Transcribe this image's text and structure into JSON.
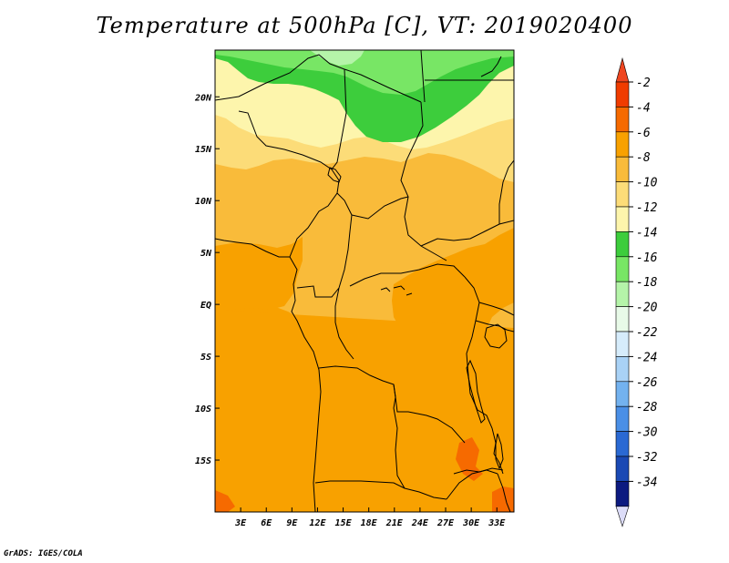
{
  "title": "Temperature at 500hPa [C], VT: 2019020400",
  "credit": "GrADS: IGES/COLA",
  "map": {
    "variable": "Temperature",
    "level": "500hPa",
    "units": "C",
    "valid_time": "2019020400",
    "lon_range": [
      0,
      35
    ],
    "lat_range": [
      -20,
      24.5
    ],
    "x_ticks": [
      {
        "lon": 3,
        "label": "3E"
      },
      {
        "lon": 6,
        "label": "6E"
      },
      {
        "lon": 9,
        "label": "9E"
      },
      {
        "lon": 12,
        "label": "12E"
      },
      {
        "lon": 15,
        "label": "15E"
      },
      {
        "lon": 18,
        "label": "18E"
      },
      {
        "lon": 21,
        "label": "21E"
      },
      {
        "lon": 24,
        "label": "24E"
      },
      {
        "lon": 27,
        "label": "27E"
      },
      {
        "lon": 30,
        "label": "30E"
      },
      {
        "lon": 33,
        "label": "33E"
      }
    ],
    "y_ticks": [
      {
        "lat": 20,
        "label": "20N"
      },
      {
        "lat": 15,
        "label": "15N"
      },
      {
        "lat": 10,
        "label": "10N"
      },
      {
        "lat": 5,
        "label": "5N"
      },
      {
        "lat": 0,
        "label": "EQ"
      },
      {
        "lat": -5,
        "label": "5S"
      },
      {
        "lat": -10,
        "label": "10S"
      },
      {
        "lat": -15,
        "label": "15S"
      }
    ]
  },
  "colorbar": {
    "labels": [
      "-2",
      "-4",
      "-6",
      "-8",
      "-10",
      "-12",
      "-14",
      "-16",
      "-18",
      "-20",
      "-22",
      "-24",
      "-26",
      "-28",
      "-30",
      "-32",
      "-34"
    ],
    "colors": [
      "#f03c00",
      "#f66a00",
      "#f8a100",
      "#f9bb3a",
      "#fcdc78",
      "#fdf5ac",
      "#3dcd3c",
      "#78e665",
      "#b5f4a9",
      "#e8fae8",
      "#d6ecfb",
      "#a9d2f6",
      "#73b2ef",
      "#4a8fe6",
      "#2a69d3",
      "#1a49b4",
      "#0c1a80"
    ],
    "top_arrow_color": "#ef4620",
    "bottom_arrow_color": "#dcdcf8"
  }
}
